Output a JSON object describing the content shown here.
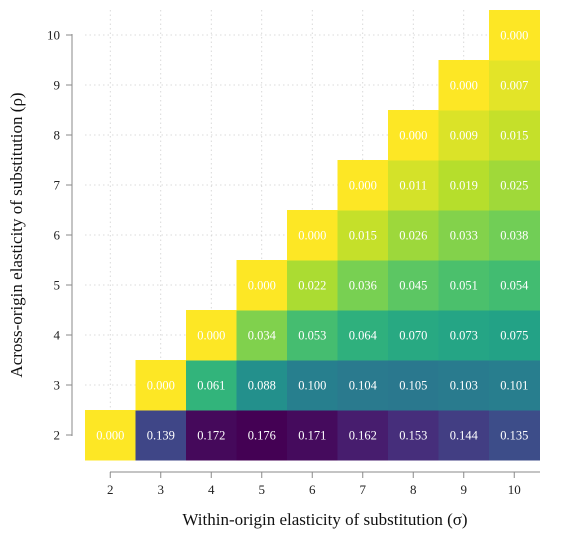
{
  "chart_data": {
    "type": "heatmap",
    "xlabel": "Within-origin elasticity of substitution (σ)",
    "ylabel": "Across-origin elasticity of substitution (ρ)",
    "x_ticks": [
      "2",
      "3",
      "4",
      "5",
      "6",
      "7",
      "8",
      "9",
      "10"
    ],
    "y_ticks": [
      "2",
      "3",
      "4",
      "5",
      "6",
      "7",
      "8",
      "9",
      "10"
    ],
    "xlim": [
      1.5,
      10.5
    ],
    "ylim": [
      1.5,
      10.5
    ],
    "grid": true,
    "colormap": "viridis",
    "color_range": [
      0,
      0.176
    ],
    "cells": [
      {
        "x": 2,
        "y": 2,
        "value": 0.0,
        "label": "0.000"
      },
      {
        "x": 3,
        "y": 2,
        "value": 0.139,
        "label": "0.139"
      },
      {
        "x": 4,
        "y": 2,
        "value": 0.172,
        "label": "0.172"
      },
      {
        "x": 5,
        "y": 2,
        "value": 0.176,
        "label": "0.176"
      },
      {
        "x": 6,
        "y": 2,
        "value": 0.171,
        "label": "0.171"
      },
      {
        "x": 7,
        "y": 2,
        "value": 0.162,
        "label": "0.162"
      },
      {
        "x": 8,
        "y": 2,
        "value": 0.153,
        "label": "0.153"
      },
      {
        "x": 9,
        "y": 2,
        "value": 0.144,
        "label": "0.144"
      },
      {
        "x": 10,
        "y": 2,
        "value": 0.135,
        "label": "0.135"
      },
      {
        "x": 3,
        "y": 3,
        "value": 0.0,
        "label": "0.000"
      },
      {
        "x": 4,
        "y": 3,
        "value": 0.061,
        "label": "0.061"
      },
      {
        "x": 5,
        "y": 3,
        "value": 0.088,
        "label": "0.088"
      },
      {
        "x": 6,
        "y": 3,
        "value": 0.1,
        "label": "0.100"
      },
      {
        "x": 7,
        "y": 3,
        "value": 0.104,
        "label": "0.104"
      },
      {
        "x": 8,
        "y": 3,
        "value": 0.105,
        "label": "0.105"
      },
      {
        "x": 9,
        "y": 3,
        "value": 0.103,
        "label": "0.103"
      },
      {
        "x": 10,
        "y": 3,
        "value": 0.101,
        "label": "0.101"
      },
      {
        "x": 4,
        "y": 4,
        "value": 0.0,
        "label": "0.000"
      },
      {
        "x": 5,
        "y": 4,
        "value": 0.034,
        "label": "0.034"
      },
      {
        "x": 6,
        "y": 4,
        "value": 0.053,
        "label": "0.053"
      },
      {
        "x": 7,
        "y": 4,
        "value": 0.064,
        "label": "0.064"
      },
      {
        "x": 8,
        "y": 4,
        "value": 0.07,
        "label": "0.070"
      },
      {
        "x": 9,
        "y": 4,
        "value": 0.073,
        "label": "0.073"
      },
      {
        "x": 10,
        "y": 4,
        "value": 0.075,
        "label": "0.075"
      },
      {
        "x": 5,
        "y": 5,
        "value": 0.0,
        "label": "0.000"
      },
      {
        "x": 6,
        "y": 5,
        "value": 0.022,
        "label": "0.022"
      },
      {
        "x": 7,
        "y": 5,
        "value": 0.036,
        "label": "0.036"
      },
      {
        "x": 8,
        "y": 5,
        "value": 0.045,
        "label": "0.045"
      },
      {
        "x": 9,
        "y": 5,
        "value": 0.051,
        "label": "0.051"
      },
      {
        "x": 10,
        "y": 5,
        "value": 0.054,
        "label": "0.054"
      },
      {
        "x": 6,
        "y": 6,
        "value": 0.0,
        "label": "0.000"
      },
      {
        "x": 7,
        "y": 6,
        "value": 0.015,
        "label": "0.015"
      },
      {
        "x": 8,
        "y": 6,
        "value": 0.026,
        "label": "0.026"
      },
      {
        "x": 9,
        "y": 6,
        "value": 0.033,
        "label": "0.033"
      },
      {
        "x": 10,
        "y": 6,
        "value": 0.038,
        "label": "0.038"
      },
      {
        "x": 7,
        "y": 7,
        "value": 0.0,
        "label": "0.000"
      },
      {
        "x": 8,
        "y": 7,
        "value": 0.011,
        "label": "0.011"
      },
      {
        "x": 9,
        "y": 7,
        "value": 0.019,
        "label": "0.019"
      },
      {
        "x": 10,
        "y": 7,
        "value": 0.025,
        "label": "0.025"
      },
      {
        "x": 8,
        "y": 8,
        "value": 0.0,
        "label": "0.000"
      },
      {
        "x": 9,
        "y": 8,
        "value": 0.009,
        "label": "0.009"
      },
      {
        "x": 10,
        "y": 8,
        "value": 0.015,
        "label": "0.015"
      },
      {
        "x": 9,
        "y": 9,
        "value": 0.0,
        "label": "0.000"
      },
      {
        "x": 10,
        "y": 9,
        "value": 0.007,
        "label": "0.007"
      },
      {
        "x": 10,
        "y": 10,
        "value": 0.0,
        "label": "0.000"
      }
    ]
  }
}
